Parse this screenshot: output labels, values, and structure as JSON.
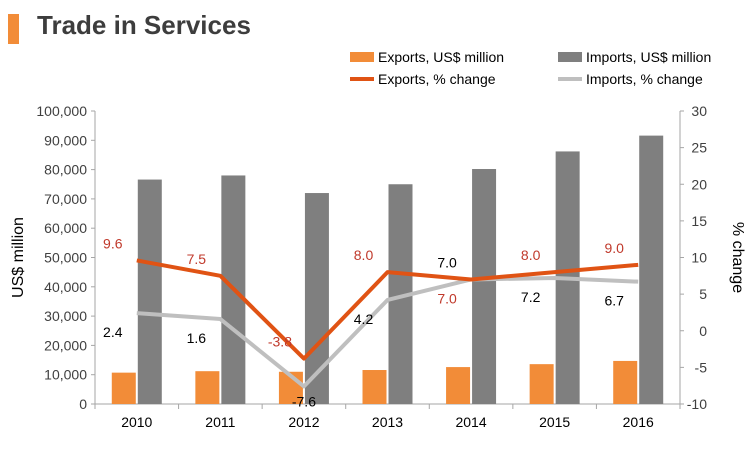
{
  "header": {
    "title": "Trade in Services"
  },
  "colors": {
    "accent": "#f28c38",
    "exports_bar": "#f28c38",
    "imports_bar": "#7f7f7f",
    "exports_line": "#e05314",
    "imports_line": "#bfbfbf",
    "exports_label": "#c0392b",
    "imports_label": "#000000"
  },
  "chart_data": {
    "type": "bar",
    "title": "Trade in Services",
    "categories": [
      "2010",
      "2011",
      "2012",
      "2013",
      "2014",
      "2015",
      "2016"
    ],
    "ylabel": "US$ million",
    "y2label": "% change",
    "ylim": [
      0,
      100000
    ],
    "y2lim": [
      -10,
      30
    ],
    "yticks": [
      "0",
      "10,000",
      "20,000",
      "30,000",
      "40,000",
      "50,000",
      "60,000",
      "70,000",
      "80,000",
      "90,000",
      "100,000"
    ],
    "y2ticks": [
      "-10",
      "-5",
      "0",
      "5",
      "10",
      "15",
      "20",
      "25",
      "30"
    ],
    "grid": false,
    "legend_position": "top-right",
    "series": [
      {
        "name": "Exports, US$ million",
        "type": "bar",
        "axis": "left",
        "values": [
          10700,
          11200,
          11000,
          11600,
          12600,
          13600,
          14700
        ]
      },
      {
        "name": "Imports, US$ million",
        "type": "bar",
        "axis": "left",
        "values": [
          76600,
          78000,
          72000,
          75000,
          80200,
          86200,
          91600
        ]
      },
      {
        "name": "Exports, % change",
        "type": "line",
        "axis": "right",
        "values": [
          9.6,
          7.5,
          -3.8,
          8.0,
          7.0,
          8.0,
          9.0
        ],
        "labels": [
          "9.6",
          "7.5",
          "-3.8",
          "8.0",
          "7.0",
          "8.0",
          "9.0"
        ]
      },
      {
        "name": "Imports, % change",
        "type": "line",
        "axis": "right",
        "values": [
          2.4,
          1.6,
          -7.6,
          4.2,
          7.0,
          7.2,
          6.7
        ],
        "labels": [
          "2.4",
          "1.6",
          "-7.6",
          "4.2",
          "7.0",
          "7.2",
          "6.7"
        ]
      }
    ]
  }
}
